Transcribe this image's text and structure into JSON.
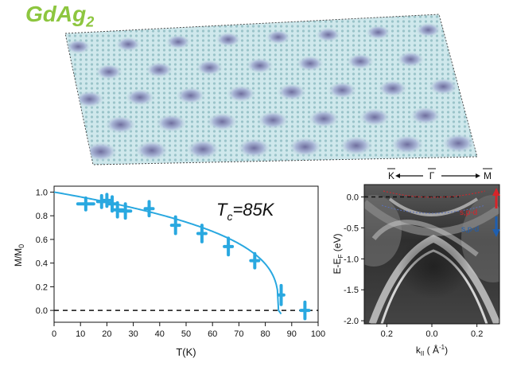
{
  "figure": {
    "title_main": "GdAg",
    "title_sub": "2"
  },
  "colors": {
    "title": "#8dc63f",
    "data": "#29a8e0",
    "spin_up": "#d7242a",
    "spin_down": "#1f5fb0"
  },
  "chart_data": [
    {
      "type": "scatter",
      "xlabel": "T(K)",
      "ylabel_main": "M/M",
      "ylabel_sub": "0",
      "annotation_main": "T",
      "annotation_sub": "c",
      "annotation_rest": "=85K",
      "xlim": [
        0,
        100
      ],
      "ylim": [
        -0.1,
        1.05
      ],
      "x_ticks": [
        "0",
        "10",
        "20",
        "30",
        "40",
        "50",
        "60",
        "70",
        "80",
        "90",
        "100"
      ],
      "y_ticks": [
        "0.0",
        "0.2",
        "0.4",
        "0.6",
        "0.8",
        "1.0"
      ],
      "points": [
        {
          "x": 12,
          "y": 0.9,
          "xerr": 3,
          "yerr": 0.05
        },
        {
          "x": 18,
          "y": 0.92,
          "xerr": 1.5,
          "yerr": 0.05
        },
        {
          "x": 20,
          "y": 0.93,
          "xerr": 1.5,
          "yerr": 0.05
        },
        {
          "x": 22,
          "y": 0.9,
          "xerr": 1.5,
          "yerr": 0.06
        },
        {
          "x": 24,
          "y": 0.85,
          "xerr": 2,
          "yerr": 0.06
        },
        {
          "x": 27,
          "y": 0.84,
          "xerr": 2,
          "yerr": 0.06
        },
        {
          "x": 36,
          "y": 0.86,
          "xerr": 1.5,
          "yerr": 0.06
        },
        {
          "x": 46,
          "y": 0.72,
          "xerr": 1.5,
          "yerr": 0.07
        },
        {
          "x": 56,
          "y": 0.65,
          "xerr": 1.5,
          "yerr": 0.07
        },
        {
          "x": 66,
          "y": 0.54,
          "xerr": 1.5,
          "yerr": 0.07
        },
        {
          "x": 76,
          "y": 0.42,
          "xerr": 1.5,
          "yerr": 0.06
        },
        {
          "x": 86,
          "y": 0.13,
          "xerr": 1,
          "yerr": 0.08
        },
        {
          "x": 95,
          "y": 0.0,
          "xerr": 1.5,
          "yerr": 0.07
        }
      ],
      "fit": {
        "tc": 85,
        "beta": 0.33
      },
      "zero_line": true
    },
    {
      "type": "heatmap",
      "xlabel_main": "k",
      "xlabel_sub": "II",
      "xlabel_rest": " ( Å",
      "xlabel_sup": "-1",
      "xlabel_end": ")",
      "ylabel_main": "E-E",
      "ylabel_sub": "F",
      "ylabel_rest": " (eV)",
      "xlim": [
        -0.3,
        0.3
      ],
      "ylim": [
        -2.05,
        0.2
      ],
      "x_ticks": [
        -0.2,
        0.0,
        0.2
      ],
      "x_tick_labels": [
        "0.2",
        "0.0",
        "0.2"
      ],
      "y_ticks": [
        0.0,
        -0.5,
        -1.0,
        -1.5,
        -2.0
      ],
      "y_tick_labels": [
        "0.0",
        "-0.5",
        "-1.0",
        "-1.5",
        "-2.0"
      ],
      "top_labels": {
        "left": "K",
        "center": "Γ",
        "right": "M"
      },
      "band_up_label": "s,p-d",
      "band_down_label": "s,p-d",
      "fermi_line": true
    }
  ]
}
